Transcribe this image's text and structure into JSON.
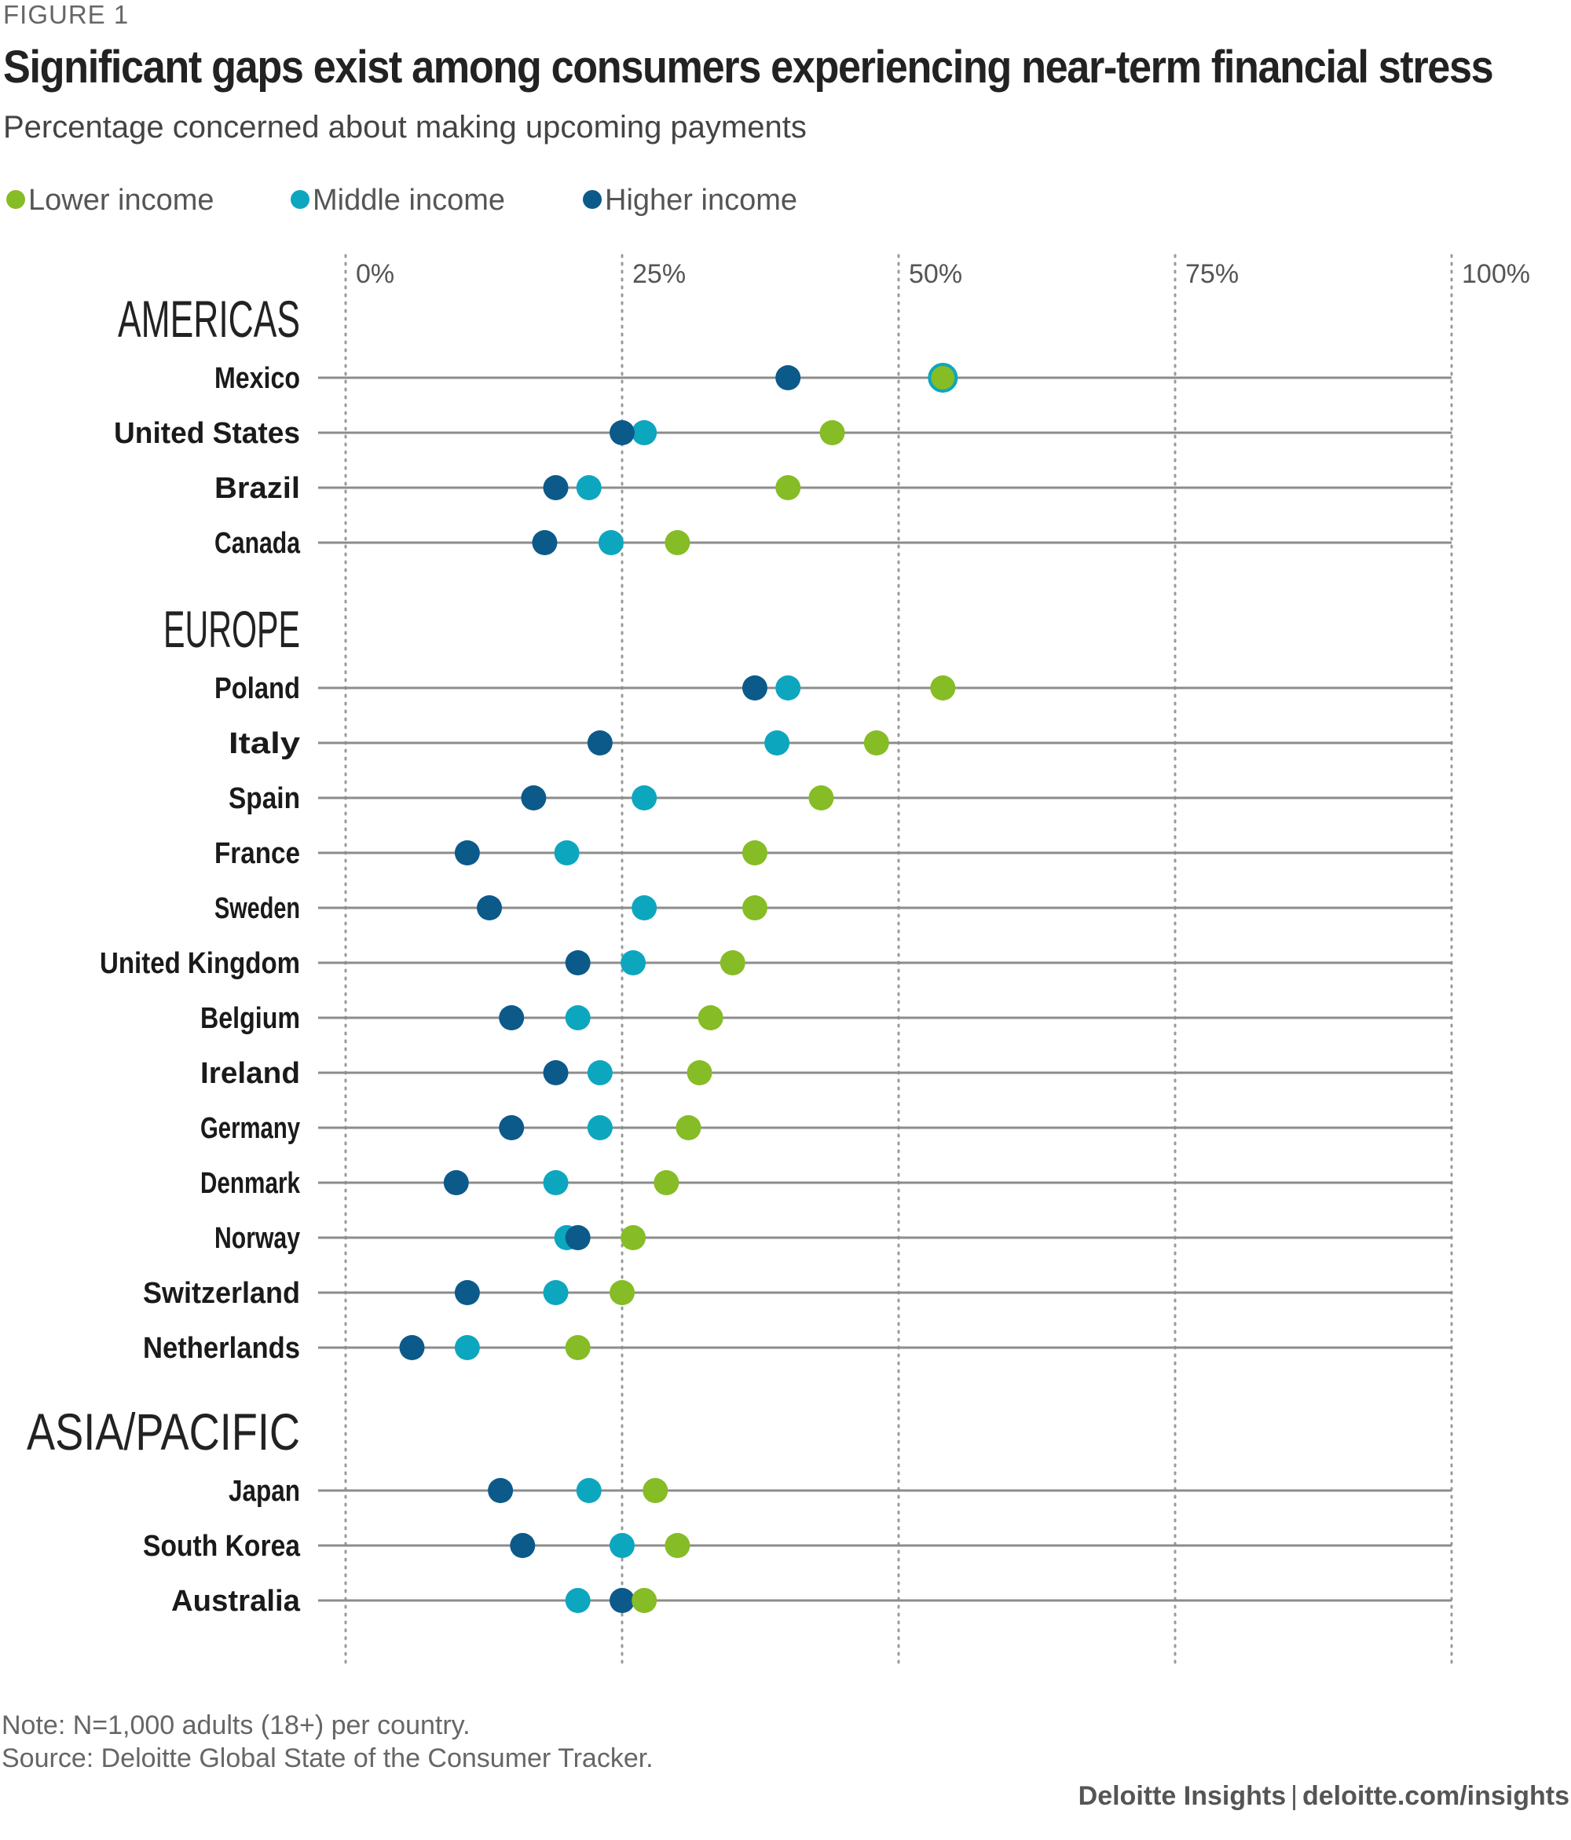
{
  "figure_label": "FIGURE 1",
  "chart_data": {
    "type": "dot",
    "title": "Significant gaps exist among consumers experiencing near-term financial stress",
    "subtitle": "Percentage concerned about making upcoming payments",
    "xlim": [
      0,
      100
    ],
    "x_ticks": [
      "0%",
      "25%",
      "50%",
      "75%",
      "100%"
    ],
    "x_tick_values": [
      0,
      25,
      50,
      75,
      100
    ],
    "legend": [
      {
        "key": "lower",
        "label": "Lower income",
        "color": "#86bc25"
      },
      {
        "key": "middle",
        "label": "Middle income",
        "color": "#0da6bf"
      },
      {
        "key": "higher",
        "label": "Higher income",
        "color": "#0b5a8a"
      }
    ],
    "groups": [
      {
        "region": "AMERICAS",
        "countries": [
          {
            "name": "Mexico",
            "lower": 54,
            "middle": 54,
            "higher": 40
          },
          {
            "name": "United States",
            "lower": 44,
            "middle": 27,
            "higher": 25
          },
          {
            "name": "Brazil",
            "lower": 40,
            "middle": 22,
            "higher": 19
          },
          {
            "name": "Canada",
            "lower": 30,
            "middle": 24,
            "higher": 18
          }
        ]
      },
      {
        "region": "EUROPE",
        "countries": [
          {
            "name": "Poland",
            "lower": 54,
            "middle": 40,
            "higher": 37
          },
          {
            "name": "Italy",
            "lower": 48,
            "middle": 39,
            "higher": 23
          },
          {
            "name": "Spain",
            "lower": 43,
            "middle": 27,
            "higher": 17
          },
          {
            "name": "France",
            "lower": 37,
            "middle": 20,
            "higher": 11
          },
          {
            "name": "Sweden",
            "lower": 37,
            "middle": 27,
            "higher": 13
          },
          {
            "name": "United Kingdom",
            "lower": 35,
            "middle": 26,
            "higher": 21
          },
          {
            "name": "Belgium",
            "lower": 33,
            "middle": 21,
            "higher": 15
          },
          {
            "name": "Ireland",
            "lower": 32,
            "middle": 23,
            "higher": 19
          },
          {
            "name": "Germany",
            "lower": 31,
            "middle": 23,
            "higher": 15
          },
          {
            "name": "Denmark",
            "lower": 29,
            "middle": 19,
            "higher": 10
          },
          {
            "name": "Norway",
            "lower": 26,
            "middle": 20,
            "higher": 21
          },
          {
            "name": "Switzerland",
            "lower": 25,
            "middle": 19,
            "higher": 11
          },
          {
            "name": "Netherlands",
            "lower": 21,
            "middle": 11,
            "higher": 6
          }
        ]
      },
      {
        "region": "ASIA/PACIFIC",
        "countries": [
          {
            "name": "Japan",
            "lower": 28,
            "middle": 22,
            "higher": 14
          },
          {
            "name": "South Korea",
            "lower": 30,
            "middle": 25,
            "higher": 16
          },
          {
            "name": "Australia",
            "lower": 27,
            "middle": 21,
            "higher": 25
          }
        ]
      }
    ]
  },
  "notes": {
    "note": "Note: N=1,000 adults (18+) per country.",
    "source": "Source: Deloitte Global State of the Consumer Tracker."
  },
  "credit": {
    "brand": "Deloitte Insights",
    "separator": "|",
    "url": "deloitte.com/insights"
  }
}
